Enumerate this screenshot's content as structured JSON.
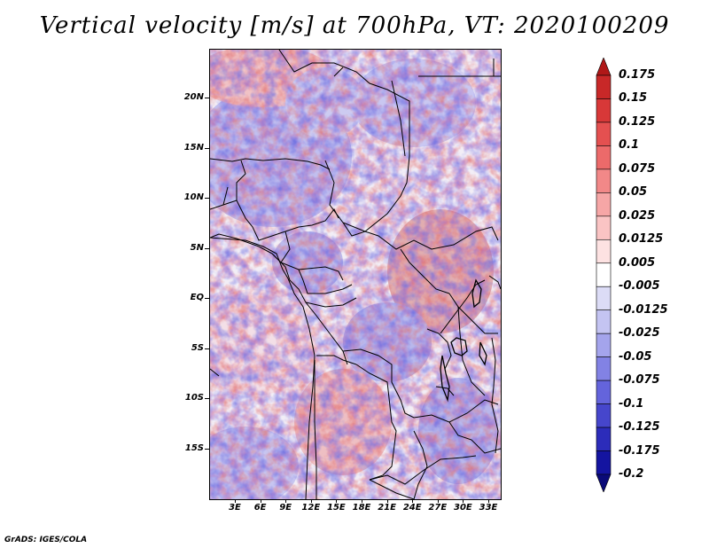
{
  "title": "Vertical velocity [m/s] at 700hPa, VT: 2020100209",
  "credit": "GrADS: IGES/COLA",
  "map": {
    "lat_labels": [
      "20N",
      "15N",
      "10N",
      "5N",
      "EQ",
      "5S",
      "10S",
      "15S"
    ],
    "lon_labels": [
      "3E",
      "6E",
      "9E",
      "12E",
      "15E",
      "18E",
      "21E",
      "24E",
      "27E",
      "30E",
      "33E"
    ]
  },
  "colorbar": {
    "levels": [
      "0.175",
      "0.15",
      "0.125",
      "0.1",
      "0.075",
      "0.05",
      "0.025",
      "0.0125",
      "0.005",
      "-0.005",
      "-0.0125",
      "-0.025",
      "-0.05",
      "-0.075",
      "-0.1",
      "-0.125",
      "-0.175",
      "-0.2"
    ],
    "colors": [
      "#b01818",
      "#c82828",
      "#d83838",
      "#e45050",
      "#ec6a6a",
      "#f28888",
      "#f6a6a6",
      "#fac4c4",
      "#fde2e2",
      "#ffffff",
      "#dcdcf6",
      "#c4c4f2",
      "#a4a4ec",
      "#8282e4",
      "#6464dc",
      "#4646cc",
      "#2c2cba",
      "#1414a0",
      "#0a0a78"
    ]
  }
}
